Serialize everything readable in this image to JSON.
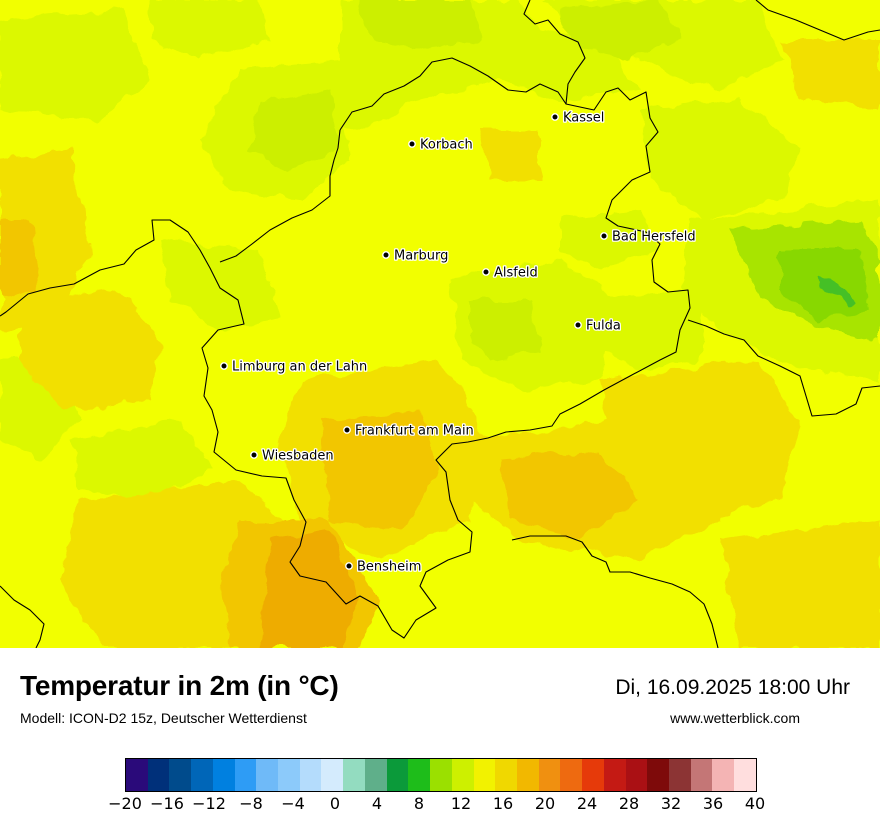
{
  "title": "Temperatur in 2m (in °C)",
  "subtitle": "Modell: ICON-D2 15z, Deutscher Wetterdienst",
  "datetime": "Di, 16.09.2025 18:00 Uhr",
  "website": "www.wetterblick.com",
  "cities": [
    {
      "name": "Kassel"
    },
    {
      "name": "Korbach"
    },
    {
      "name": "Bad Hersfeld"
    },
    {
      "name": "Marburg"
    },
    {
      "name": "Alsfeld"
    },
    {
      "name": "Fulda"
    },
    {
      "name": "Limburg an der Lahn"
    },
    {
      "name": "Frankfurt am Main"
    },
    {
      "name": "Wiesbaden"
    },
    {
      "name": "Bensheim"
    }
  ],
  "colorbar": {
    "tick_labels": [
      "−20",
      "−16",
      "−12",
      "−8",
      "−4",
      "0",
      "4",
      "8",
      "12",
      "16",
      "20",
      "24",
      "28",
      "32",
      "36",
      "40"
    ],
    "colors": [
      "#2a0a7a",
      "#00307a",
      "#004b8c",
      "#0066b8",
      "#0080e0",
      "#2e9cf5",
      "#6fbaf8",
      "#8ccafa",
      "#b4dcfc",
      "#d4ebfd",
      "#93dcc0",
      "#5faf8a",
      "#0b9a3a",
      "#1ebd1a",
      "#9be000",
      "#cdf000",
      "#f2f200",
      "#f0d800",
      "#f2b800",
      "#f09010",
      "#ee6a10",
      "#e63a0a",
      "#c41a14",
      "#aa1014",
      "#7e0a0a",
      "#8c3434",
      "#c47676",
      "#f4b4b4",
      "#ffdede"
    ]
  },
  "field_colors": {
    "base": "#f2ff00",
    "green_light": "#dcf800",
    "green_mid": "#ccef00",
    "green_dark": "#a8e400",
    "green_deep": "#88d800",
    "green_core": "#44c028",
    "orange_light": "#f2e000",
    "orange_mid": "#f2c600",
    "orange_dark": "#eeac00"
  }
}
